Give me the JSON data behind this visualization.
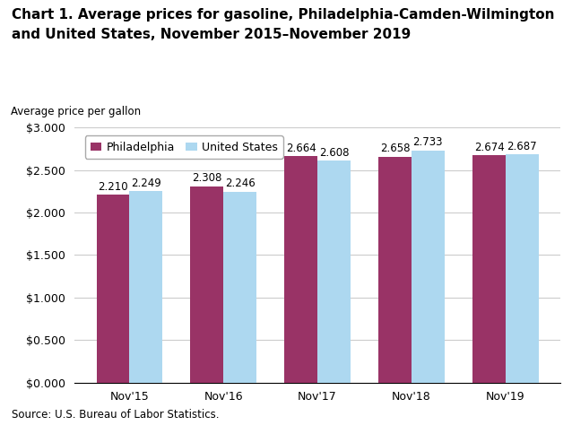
{
  "title_line1": "Chart 1. Average prices for gasoline, Philadelphia-Camden-Wilmington",
  "title_line2": "and United States, November 2015–November 2019",
  "ylabel": "Average price per gallon",
  "source": "Source: U.S. Bureau of Labor Statistics.",
  "categories": [
    "Nov'15",
    "Nov'16",
    "Nov'17",
    "Nov'18",
    "Nov'19"
  ],
  "philadelphia": [
    2.21,
    2.308,
    2.664,
    2.658,
    2.674
  ],
  "united_states": [
    2.249,
    2.246,
    2.608,
    2.733,
    2.687
  ],
  "philly_color": "#993366",
  "us_color": "#ADD8F0",
  "philly_label": "Philadelphia",
  "us_label": "United States",
  "ylim": [
    0,
    3.0
  ],
  "yticks": [
    0.0,
    0.5,
    1.0,
    1.5,
    2.0,
    2.5,
    3.0
  ],
  "bar_width": 0.35,
  "annotation_fontsize": 8.5,
  "label_fontsize": 9,
  "tick_fontsize": 9,
  "title_fontsize": 11,
  "ylabel_fontsize": 8.5,
  "source_fontsize": 8.5,
  "background_color": "#ffffff",
  "grid_color": "#cccccc"
}
